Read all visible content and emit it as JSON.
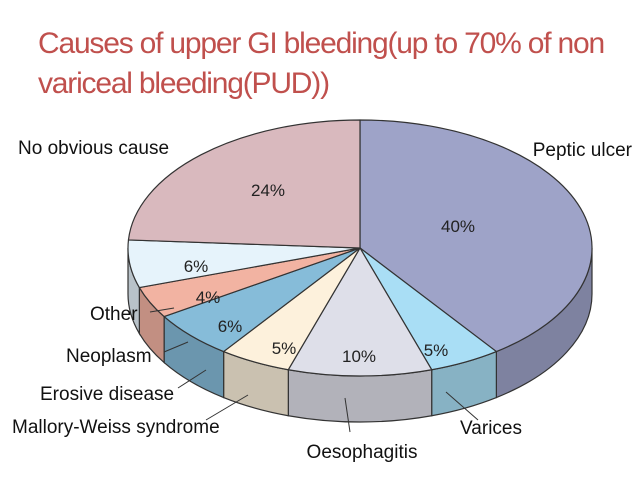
{
  "slide": {
    "title": "Causes of upper GI bleeding(up to 70% of non variceal bleeding(PUD))"
  },
  "chart_data": {
    "type": "pie",
    "title": "",
    "slices": [
      {
        "label": "Peptic ulcer",
        "value": 40,
        "value_label": "40%",
        "color": "#9ea3c8"
      },
      {
        "label": "Varices",
        "value": 5,
        "value_label": "5%",
        "color": "#a9def5"
      },
      {
        "label": "Oesophagitis",
        "value": 10,
        "value_label": "10%",
        "color": "#dedfe9"
      },
      {
        "label": "Mallory-Weiss syndrome",
        "value": 5,
        "value_label": "5%",
        "color": "#fdf1dc"
      },
      {
        "label": "Erosive disease",
        "value": 6,
        "value_label": "6%",
        "color": "#86bcd9"
      },
      {
        "label": "Neoplasm",
        "value": 4,
        "value_label": "4%",
        "color": "#f2b3a2"
      },
      {
        "label": "Other",
        "value": 6,
        "value_label": "6%",
        "color": "#e6f3fb"
      },
      {
        "label": "No obvious cause",
        "value": 24,
        "value_label": "24%",
        "color": "#d9b9be"
      }
    ]
  }
}
